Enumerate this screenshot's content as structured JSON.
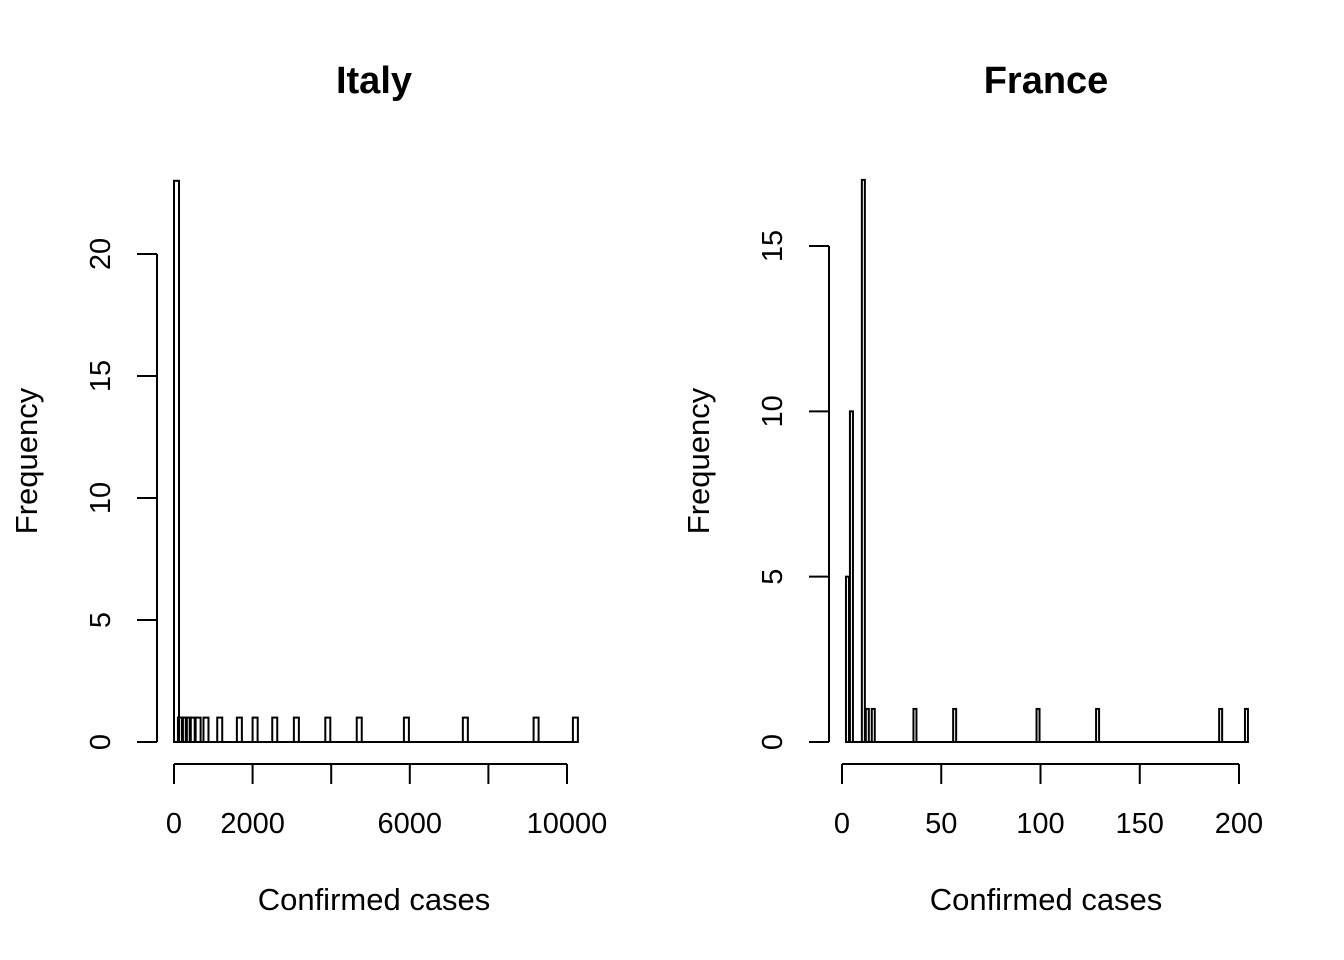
{
  "chart_data": [
    {
      "type": "bar",
      "subtype": "histogram",
      "title": "Italy",
      "xlabel": "Confirmed cases",
      "ylabel": "Frequency",
      "xlim": [
        0,
        10200
      ],
      "ylim": [
        0,
        23
      ],
      "xticks": [
        0,
        2000,
        4000,
        6000,
        8000,
        10000
      ],
      "xtick_labels": [
        "0",
        "2000",
        "",
        "6000",
        "",
        "10000"
      ],
      "yticks": [
        0,
        5,
        10,
        15,
        20
      ],
      "ytick_labels": [
        "0",
        "5",
        "10",
        "15",
        "20"
      ],
      "bin_width": 50,
      "bins": [
        {
          "x": 0,
          "count": 23
        },
        {
          "x": 100,
          "count": 1
        },
        {
          "x": 200,
          "count": 1
        },
        {
          "x": 300,
          "count": 1
        },
        {
          "x": 400,
          "count": 1
        },
        {
          "x": 550,
          "count": 1
        },
        {
          "x": 750,
          "count": 1
        },
        {
          "x": 1100,
          "count": 1
        },
        {
          "x": 1600,
          "count": 1
        },
        {
          "x": 2000,
          "count": 1
        },
        {
          "x": 2500,
          "count": 1
        },
        {
          "x": 3050,
          "count": 1
        },
        {
          "x": 3850,
          "count": 1
        },
        {
          "x": 4650,
          "count": 1
        },
        {
          "x": 5850,
          "count": 1
        },
        {
          "x": 7350,
          "count": 1
        },
        {
          "x": 9150,
          "count": 1
        },
        {
          "x": 10150,
          "count": 1
        }
      ],
      "grid": false
    },
    {
      "type": "bar",
      "subtype": "histogram",
      "title": "France",
      "xlabel": "Confirmed cases",
      "ylabel": "Frequency",
      "xlim": [
        0,
        205
      ],
      "ylim": [
        0,
        17
      ],
      "xticks": [
        0,
        50,
        100,
        150,
        200
      ],
      "xtick_labels": [
        "0",
        "50",
        "100",
        "150",
        "200"
      ],
      "yticks": [
        0,
        5,
        10,
        15
      ],
      "ytick_labels": [
        "0",
        "5",
        "10",
        "15"
      ],
      "bin_width": 1,
      "bins": [
        {
          "x": 2,
          "count": 5
        },
        {
          "x": 4,
          "count": 10
        },
        {
          "x": 10,
          "count": 17
        },
        {
          "x": 12,
          "count": 1
        },
        {
          "x": 15,
          "count": 1
        },
        {
          "x": 36,
          "count": 1
        },
        {
          "x": 56,
          "count": 1
        },
        {
          "x": 98,
          "count": 1
        },
        {
          "x": 128,
          "count": 1
        },
        {
          "x": 190,
          "count": 1
        },
        {
          "x": 203,
          "count": 1
        }
      ],
      "grid": false
    }
  ]
}
